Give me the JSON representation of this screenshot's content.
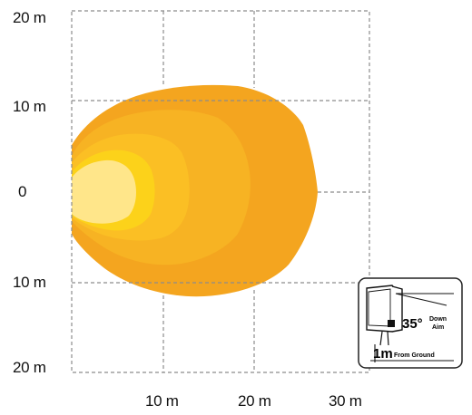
{
  "y_labels": [
    "20 m",
    "10 m",
    "0",
    "10 m",
    "20 m"
  ],
  "x_labels": [
    "10 m",
    "20 m",
    "30 m"
  ],
  "colors": {
    "zone_outer": "#f4a51f",
    "zone_2": "#f7b323",
    "zone_3": "#fbbf24",
    "zone_4": "#fcd21a",
    "zone_core": "#ffe68a",
    "grid": "#8c8c8c"
  },
  "inset": {
    "angle": "35°",
    "angle_label_line1": "Down",
    "angle_label_line2": "Aim",
    "height": "1m",
    "height_label": "From Ground",
    "icon": "work-light-mount-icon"
  }
}
